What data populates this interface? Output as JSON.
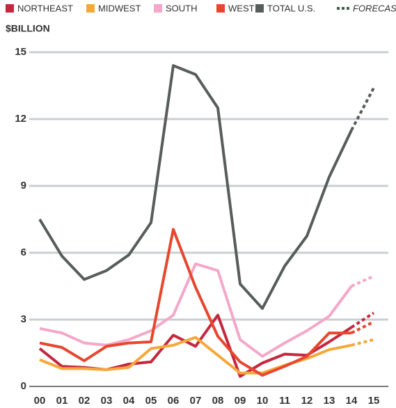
{
  "chart_data": {
    "type": "line",
    "title": "$BILLION",
    "categories": [
      "00",
      "01",
      "02",
      "03",
      "04",
      "05",
      "06",
      "07",
      "08",
      "09",
      "10",
      "11",
      "12",
      "13",
      "14",
      "15"
    ],
    "series": [
      {
        "name": "NORTHEAST",
        "color": "#c4283f",
        "values": [
          1.7,
          0.9,
          0.85,
          0.75,
          1.0,
          1.1,
          2.3,
          1.8,
          3.2,
          0.45,
          1.05,
          1.45,
          1.4,
          2.0,
          2.65,
          3.3
        ]
      },
      {
        "name": "MIDWEST",
        "color": "#f5a83a",
        "values": [
          1.2,
          0.8,
          0.8,
          0.75,
          0.85,
          1.7,
          1.85,
          2.2,
          1.4,
          0.6,
          0.6,
          0.95,
          1.25,
          1.65,
          1.85,
          2.1
        ]
      },
      {
        "name": "SOUTH",
        "color": "#f4a7c9",
        "values": [
          2.6,
          2.4,
          1.95,
          1.85,
          2.1,
          2.5,
          3.2,
          5.5,
          5.2,
          2.1,
          1.35,
          1.95,
          2.5,
          3.15,
          4.5,
          4.95
        ]
      },
      {
        "name": "WEST",
        "color": "#e8462e",
        "values": [
          1.95,
          1.75,
          1.15,
          1.8,
          1.95,
          2.0,
          7.05,
          4.45,
          2.25,
          1.1,
          0.5,
          0.9,
          1.35,
          2.4,
          2.4,
          2.9
        ]
      },
      {
        "name": "TOTAL U.S.",
        "color": "#575d5b",
        "values": [
          7.5,
          5.85,
          4.8,
          5.2,
          5.9,
          7.35,
          14.4,
          14.0,
          12.5,
          4.6,
          3.5,
          5.4,
          6.75,
          9.4,
          11.5,
          13.4
        ]
      }
    ],
    "forecast": {
      "name": "FORECAST",
      "color": "#3f5e46",
      "from": "14"
    },
    "ylim": [
      0,
      15
    ],
    "yticks": [
      0,
      3,
      6,
      9,
      12,
      15
    ],
    "grid": true
  }
}
